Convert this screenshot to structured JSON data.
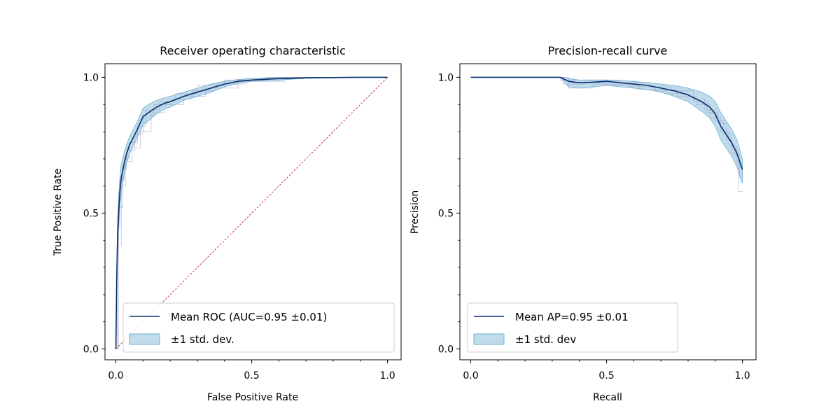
{
  "colors": {
    "mean_line": "#08306b",
    "band_fill": "#9ecae1",
    "band_edge": "#6baed6",
    "fold_lines": "#9e9ac8",
    "diagonal": "#cb181d",
    "axes": "#000000",
    "legend_border": "#cccccc"
  },
  "chart_data": [
    {
      "type": "line",
      "title": "Receiver operating characteristic",
      "xlabel": "False Positive Rate",
      "ylabel": "True Positive Rate",
      "xlim": [
        -0.04,
        1.05
      ],
      "ylim": [
        -0.04,
        1.05
      ],
      "xticks": [
        0.0,
        0.5,
        1.0
      ],
      "yticks": [
        0.0,
        0.5,
        1.0
      ],
      "xtick_labels": [
        "0.0",
        "0.5",
        "1.0"
      ],
      "ytick_labels": [
        "0.0",
        "0.5",
        "1.0"
      ],
      "legend_position": "lower-right",
      "legend": [
        {
          "label": "Mean ROC (AUC=0.95 ±0.01)",
          "kind": "line"
        },
        {
          "label": "±1 std. dev.",
          "kind": "patch"
        }
      ],
      "chance_line": {
        "x": [
          0,
          1
        ],
        "y": [
          0,
          1
        ]
      },
      "mean": {
        "x": [
          0.0,
          0.003,
          0.006,
          0.01,
          0.015,
          0.02,
          0.03,
          0.04,
          0.05,
          0.06,
          0.08,
          0.1,
          0.12,
          0.15,
          0.18,
          0.2,
          0.25,
          0.3,
          0.35,
          0.4,
          0.45,
          0.5,
          0.6,
          0.7,
          0.8,
          0.9,
          1.0
        ],
        "y": [
          0.0,
          0.25,
          0.4,
          0.5,
          0.58,
          0.63,
          0.68,
          0.72,
          0.75,
          0.77,
          0.81,
          0.855,
          0.87,
          0.89,
          0.905,
          0.91,
          0.93,
          0.945,
          0.96,
          0.975,
          0.985,
          0.99,
          0.995,
          0.998,
          0.999,
          1.0,
          1.0
        ]
      },
      "band_upper": [
        0.0,
        0.3,
        0.46,
        0.56,
        0.63,
        0.68,
        0.72,
        0.755,
        0.78,
        0.8,
        0.84,
        0.885,
        0.9,
        0.915,
        0.925,
        0.93,
        0.945,
        0.96,
        0.975,
        0.985,
        0.992,
        0.995,
        1.0,
        1.0,
        1.0,
        1.0,
        1.0
      ],
      "band_lower": [
        0.0,
        0.2,
        0.34,
        0.44,
        0.53,
        0.58,
        0.64,
        0.685,
        0.72,
        0.74,
        0.78,
        0.825,
        0.84,
        0.865,
        0.885,
        0.89,
        0.915,
        0.93,
        0.945,
        0.965,
        0.978,
        0.985,
        0.99,
        0.996,
        0.998,
        1.0,
        1.0
      ],
      "folds": [
        {
          "x": [
            0.0,
            0.005,
            0.005,
            0.015,
            0.015,
            0.03,
            0.03,
            0.05,
            0.05,
            0.08,
            0.08,
            0.11,
            0.11,
            0.16,
            0.16,
            0.22,
            0.22,
            0.3,
            0.3,
            0.4,
            0.4,
            0.55,
            0.55,
            1.0
          ],
          "y": [
            0.0,
            0.0,
            0.45,
            0.45,
            0.62,
            0.62,
            0.7,
            0.7,
            0.76,
            0.76,
            0.82,
            0.82,
            0.88,
            0.88,
            0.91,
            0.91,
            0.94,
            0.94,
            0.97,
            0.97,
            0.99,
            0.99,
            1.0,
            1.0
          ]
        },
        {
          "x": [
            0.0,
            0.01,
            0.01,
            0.025,
            0.025,
            0.04,
            0.04,
            0.07,
            0.07,
            0.1,
            0.1,
            0.14,
            0.14,
            0.2,
            0.2,
            0.28,
            0.28,
            0.36,
            0.36,
            0.48,
            0.48,
            0.68,
            0.68,
            1.0
          ],
          "y": [
            0.0,
            0.0,
            0.52,
            0.52,
            0.66,
            0.66,
            0.73,
            0.73,
            0.79,
            0.79,
            0.86,
            0.86,
            0.9,
            0.9,
            0.92,
            0.92,
            0.95,
            0.95,
            0.975,
            0.975,
            0.995,
            0.995,
            1.0,
            1.0
          ]
        },
        {
          "x": [
            0.0,
            0.004,
            0.004,
            0.02,
            0.02,
            0.035,
            0.035,
            0.06,
            0.06,
            0.09,
            0.09,
            0.13,
            0.13,
            0.18,
            0.18,
            0.25,
            0.25,
            0.33,
            0.33,
            0.45,
            0.45,
            0.62,
            0.62,
            1.0
          ],
          "y": [
            0.0,
            0.0,
            0.38,
            0.38,
            0.6,
            0.6,
            0.69,
            0.69,
            0.74,
            0.74,
            0.8,
            0.8,
            0.87,
            0.87,
            0.9,
            0.9,
            0.93,
            0.93,
            0.96,
            0.96,
            0.985,
            0.985,
            1.0,
            1.0
          ]
        }
      ]
    },
    {
      "type": "line",
      "title": "Precision-recall curve",
      "xlabel": "Recall",
      "ylabel": "Precision",
      "xlim": [
        -0.04,
        1.05
      ],
      "ylim": [
        -0.04,
        1.05
      ],
      "xticks": [
        0.0,
        0.5,
        1.0
      ],
      "yticks": [
        0.0,
        0.5,
        1.0
      ],
      "xtick_labels": [
        "0.0",
        "0.5",
        "1.0"
      ],
      "ytick_labels": [
        "0.0",
        "0.5",
        "1.0"
      ],
      "legend_position": "lower-left",
      "legend": [
        {
          "label": "Mean AP=0.95 ±0.01",
          "kind": "line"
        },
        {
          "label": "±1 std. dev",
          "kind": "patch"
        }
      ],
      "mean": {
        "x": [
          0.0,
          0.1,
          0.2,
          0.3,
          0.33,
          0.36,
          0.4,
          0.45,
          0.5,
          0.55,
          0.6,
          0.65,
          0.7,
          0.75,
          0.8,
          0.85,
          0.88,
          0.9,
          0.92,
          0.94,
          0.96,
          0.98,
          1.0
        ],
        "y": [
          1.0,
          1.0,
          1.0,
          1.0,
          1.0,
          0.985,
          0.98,
          0.982,
          0.985,
          0.98,
          0.975,
          0.97,
          0.96,
          0.95,
          0.935,
          0.91,
          0.89,
          0.865,
          0.82,
          0.79,
          0.76,
          0.72,
          0.66
        ]
      },
      "band_upper": [
        1.0,
        1.0,
        1.0,
        1.0,
        1.0,
        0.995,
        0.99,
        0.99,
        0.99,
        0.988,
        0.985,
        0.98,
        0.975,
        0.97,
        0.96,
        0.945,
        0.93,
        0.91,
        0.87,
        0.84,
        0.81,
        0.77,
        0.7
      ],
      "band_lower": [
        1.0,
        1.0,
        1.0,
        1.0,
        1.0,
        0.965,
        0.96,
        0.965,
        0.97,
        0.965,
        0.96,
        0.955,
        0.945,
        0.93,
        0.91,
        0.875,
        0.85,
        0.82,
        0.77,
        0.74,
        0.71,
        0.67,
        0.61
      ],
      "folds": [
        {
          "x": [
            0.0,
            0.33,
            0.33,
            0.38,
            0.38,
            0.5,
            0.5,
            0.62,
            0.62,
            0.72,
            0.72,
            0.8,
            0.8,
            0.86,
            0.86,
            0.9,
            0.9,
            0.93,
            0.93,
            0.96,
            0.96,
            0.98,
            0.98,
            1.0
          ],
          "y": [
            1.0,
            1.0,
            0.99,
            0.99,
            0.98,
            0.98,
            0.97,
            0.97,
            0.955,
            0.955,
            0.94,
            0.94,
            0.92,
            0.92,
            0.88,
            0.88,
            0.84,
            0.84,
            0.79,
            0.79,
            0.74,
            0.74,
            0.68,
            0.68
          ]
        },
        {
          "x": [
            0.0,
            0.36,
            0.36,
            0.45,
            0.45,
            0.58,
            0.58,
            0.68,
            0.68,
            0.76,
            0.76,
            0.83,
            0.83,
            0.88,
            0.88,
            0.92,
            0.92,
            0.95,
            0.95,
            0.97,
            0.97,
            0.99,
            0.99,
            1.0
          ],
          "y": [
            1.0,
            1.0,
            0.96,
            0.96,
            0.975,
            0.975,
            0.965,
            0.965,
            0.95,
            0.95,
            0.93,
            0.93,
            0.9,
            0.9,
            0.85,
            0.85,
            0.8,
            0.8,
            0.75,
            0.75,
            0.71,
            0.71,
            0.63,
            0.63
          ]
        },
        {
          "x": [
            0.0,
            0.34,
            0.34,
            0.42,
            0.42,
            0.55,
            0.55,
            0.66,
            0.66,
            0.74,
            0.74,
            0.82,
            0.82,
            0.87,
            0.87,
            0.91,
            0.91,
            0.94,
            0.94,
            0.96,
            0.96,
            0.985,
            0.985,
            1.0
          ],
          "y": [
            1.0,
            1.0,
            0.975,
            0.975,
            0.99,
            0.99,
            0.98,
            0.98,
            0.965,
            0.965,
            0.95,
            0.95,
            0.91,
            0.91,
            0.87,
            0.87,
            0.83,
            0.83,
            0.77,
            0.77,
            0.72,
            0.72,
            0.58,
            0.58
          ]
        }
      ]
    }
  ]
}
